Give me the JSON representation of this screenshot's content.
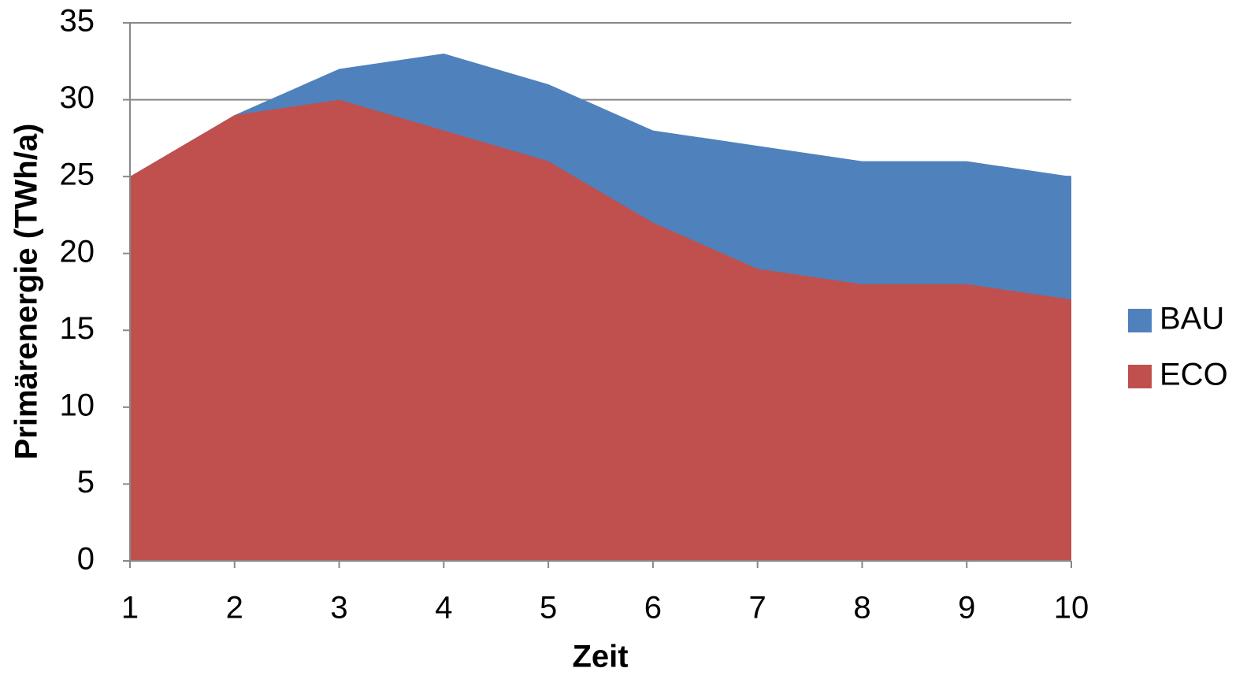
{
  "chart_data": {
    "type": "area",
    "x": [
      1,
      2,
      3,
      4,
      5,
      6,
      7,
      8,
      9,
      10
    ],
    "series": [
      {
        "name": "BAU",
        "color": "#4f81bd",
        "values": [
          25,
          29,
          32,
          33,
          31,
          28,
          27,
          26,
          26,
          25
        ]
      },
      {
        "name": "ECO",
        "color": "#c0504d",
        "values": [
          25,
          29,
          30,
          28,
          26,
          22,
          19,
          18,
          18,
          17
        ]
      }
    ],
    "xlabel": "Zeit",
    "ylabel": "Primärenergie (TWh/a)",
    "xlim": [
      1,
      10
    ],
    "xticks": [
      1,
      2,
      3,
      4,
      5,
      6,
      7,
      8,
      9,
      10
    ],
    "ylim": [
      0,
      35
    ],
    "yticks": [
      0,
      5,
      10,
      15,
      20,
      25,
      30,
      35
    ],
    "grid": true,
    "legend": "right"
  }
}
